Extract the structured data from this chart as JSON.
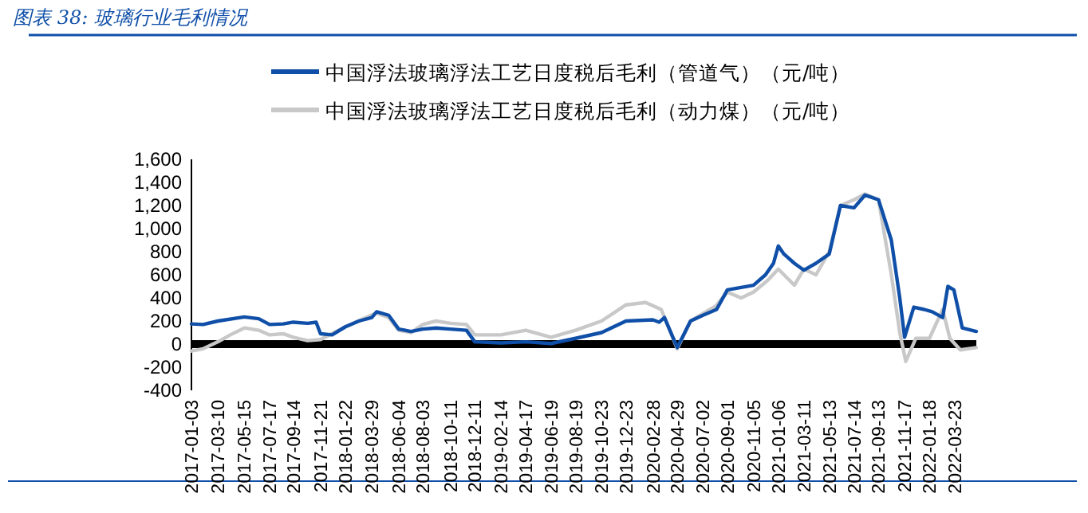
{
  "chart_data": {
    "type": "line",
    "title": "图表 38:  玻璃行业毛利情况",
    "legend": "top",
    "xlim": [
      "2017-01-03",
      "2022-05-15"
    ],
    "xticks": [
      "2017-01-03",
      "2017-03-10",
      "2017-05-15",
      "2017-07-17",
      "2017-09-14",
      "2017-11-21",
      "2018-01-22",
      "2018-03-29",
      "2018-06-04",
      "2018-08-03",
      "2018-10-11",
      "2018-12-11",
      "2019-02-14",
      "2019-04-17",
      "2019-06-19",
      "2019-08-19",
      "2019-10-23",
      "2019-12-23",
      "2020-02-28",
      "2020-04-29",
      "2020-07-02",
      "2020-09-01",
      "2020-11-05",
      "2021-01-06",
      "2021-03-11",
      "2021-05-13",
      "2021-07-14",
      "2021-09-13",
      "2021-11-17",
      "2022-01-18",
      "2022-03-23"
    ],
    "ylim": [
      -400,
      1600
    ],
    "yticks": [
      {
        "value": -400,
        "label": "-400"
      },
      {
        "value": -200,
        "label": "-200"
      },
      0,
      200,
      400,
      600,
      800,
      {
        "value": 1000,
        "label": "1,000"
      },
      {
        "value": 1200,
        "label": "1,200"
      },
      {
        "value": 1400,
        "label": "1,400"
      },
      {
        "value": 1600,
        "label": "1,600"
      }
    ],
    "series": [
      {
        "name": "中国浮法玻璃浮法工艺日度税后毛利（管道气）（元/吨）",
        "color": "#0f4fa8",
        "x": [
          "2017-01-03",
          "2017-02-01",
          "2017-03-10",
          "2017-05-15",
          "2017-06-20",
          "2017-07-17",
          "2017-08-20",
          "2017-09-14",
          "2017-10-20",
          "2017-11-10",
          "2017-11-21",
          "2017-12-20",
          "2018-01-22",
          "2018-02-25",
          "2018-03-29",
          "2018-04-10",
          "2018-05-10",
          "2018-06-04",
          "2018-07-05",
          "2018-08-03",
          "2018-09-05",
          "2018-10-11",
          "2018-11-20",
          "2018-12-11",
          "2019-02-14",
          "2019-04-17",
          "2019-06-19",
          "2019-08-19",
          "2019-10-23",
          "2019-12-23",
          "2020-02-28",
          "2020-03-15",
          "2020-03-28",
          "2020-04-29",
          "2020-06-01",
          "2020-07-02",
          "2020-08-05",
          "2020-09-01",
          "2020-10-05",
          "2020-11-05",
          "2020-12-05",
          "2020-12-25",
          "2021-01-06",
          "2021-01-20",
          "2021-02-15",
          "2021-03-11",
          "2021-04-10",
          "2021-05-13",
          "2021-06-10",
          "2021-07-14",
          "2021-08-10",
          "2021-09-13",
          "2021-10-15",
          "2021-11-05",
          "2021-11-17",
          "2021-12-10",
          "2022-01-05",
          "2022-01-25",
          "2022-02-20",
          "2022-03-05",
          "2022-03-20",
          "2022-04-10",
          "2022-05-15"
        ],
        "values": [
          175,
          170,
          200,
          235,
          220,
          170,
          175,
          190,
          180,
          190,
          90,
          80,
          150,
          200,
          230,
          280,
          250,
          130,
          110,
          130,
          140,
          130,
          120,
          20,
          10,
          20,
          5,
          50,
          100,
          200,
          210,
          190,
          230,
          -30,
          200,
          250,
          300,
          470,
          490,
          510,
          600,
          700,
          850,
          780,
          700,
          640,
          700,
          780,
          1200,
          1180,
          1290,
          1250,
          900,
          400,
          60,
          320,
          300,
          280,
          230,
          500,
          470,
          140,
          110
        ]
      },
      {
        "name": "中国浮法玻璃浮法工艺日度税后毛利（动力煤）（元/吨）",
        "color": "#c8c8c8",
        "x": [
          "2017-01-03",
          "2017-02-01",
          "2017-03-10",
          "2017-04-10",
          "2017-05-15",
          "2017-06-20",
          "2017-07-17",
          "2017-08-20",
          "2017-09-14",
          "2017-10-20",
          "2017-11-21",
          "2018-01-22",
          "2018-03-01",
          "2018-04-10",
          "2018-05-10",
          "2018-06-04",
          "2018-07-05",
          "2018-08-03",
          "2018-09-05",
          "2018-10-11",
          "2018-11-20",
          "2018-12-11",
          "2019-02-14",
          "2019-04-17",
          "2019-06-19",
          "2019-08-19",
          "2019-10-23",
          "2019-12-23",
          "2020-02-10",
          "2020-03-20",
          "2020-04-29",
          "2020-06-01",
          "2020-08-03",
          "2020-09-01",
          "2020-10-05",
          "2020-11-05",
          "2020-12-10",
          "2021-01-06",
          "2021-02-15",
          "2021-03-11",
          "2021-04-10",
          "2021-05-13",
          "2021-06-10",
          "2021-07-14",
          "2021-08-10",
          "2021-09-13",
          "2021-10-15",
          "2021-11-05",
          "2021-11-20",
          "2021-12-15",
          "2022-01-18",
          "2022-02-20",
          "2022-03-10",
          "2022-04-05",
          "2022-05-15"
        ],
        "values": [
          -60,
          -40,
          20,
          80,
          140,
          120,
          80,
          90,
          60,
          30,
          40,
          150,
          210,
          270,
          230,
          120,
          100,
          170,
          200,
          180,
          170,
          80,
          80,
          120,
          60,
          120,
          200,
          340,
          360,
          300,
          -40,
          200,
          330,
          450,
          400,
          450,
          550,
          650,
          510,
          650,
          600,
          800,
          1200,
          1250,
          1300,
          1250,
          600,
          100,
          -150,
          50,
          50,
          300,
          50,
          -50,
          -30
        ]
      }
    ]
  }
}
